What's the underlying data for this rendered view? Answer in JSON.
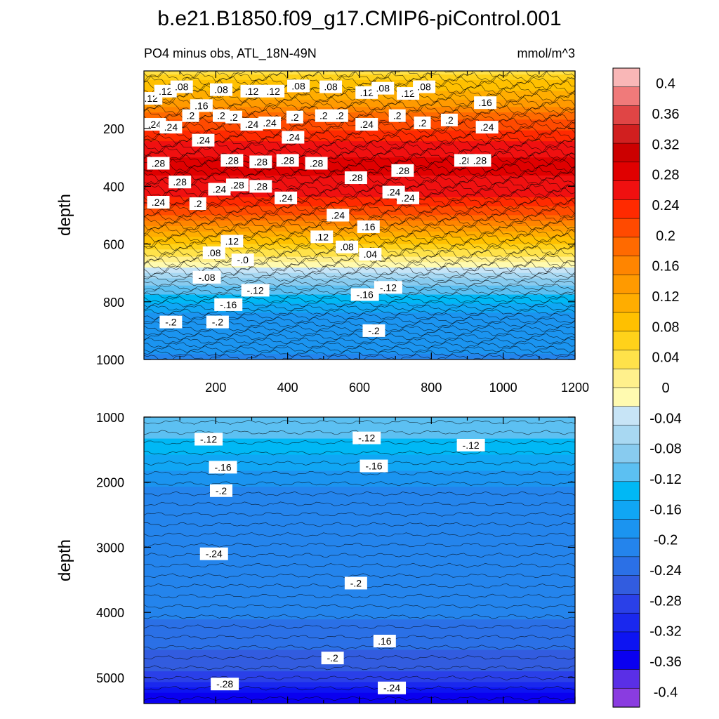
{
  "chart_data": {
    "type": "heatmap",
    "title": "b.e21.B1850.f09_g17.CMIP6-piControl.001",
    "subtitle_left": "PO4 minus obs, ATL_18N-49N",
    "subtitle_right": "mmol/m^3",
    "colorbar": {
      "levels": [
        "0.4",
        "0.36",
        "0.32",
        "0.28",
        "0.24",
        "0.2",
        "0.16",
        "0.12",
        "0.08",
        "0.04",
        "0",
        "-0.04",
        "-0.08",
        "-0.12",
        "-0.16",
        "-0.2",
        "-0.24",
        "-0.28",
        "-0.32",
        "-0.36",
        "-0.4"
      ],
      "colors": [
        "#f9b7b7",
        "#f07a7a",
        "#e04545",
        "#d11f1f",
        "#cc0000",
        "#e00000",
        "#f01010",
        "#ff2a00",
        "#ff4a00",
        "#ff6a00",
        "#ff8500",
        "#ff9a00",
        "#ffad00",
        "#ffc000",
        "#ffd21a",
        "#ffe24a",
        "#fff08c",
        "#fffab0",
        "#c7e4f6",
        "#a8d8f2",
        "#88cbef",
        "#5cc0f2",
        "#00b8f5",
        "#10a6f4",
        "#1b94f0",
        "#2484ec",
        "#2b70e6",
        "#325cdf",
        "#2a40e8",
        "#1a28ee",
        "#0d14f2",
        "#0a00f0",
        "#5a2fe6",
        "#8a3ce0"
      ]
    },
    "top_panel": {
      "x": [
        0,
        1200
      ],
      "ylim": [
        0,
        1000
      ],
      "ylabel": "depth",
      "xticks": [
        "200",
        "400",
        "600",
        "800",
        "1000",
        "1200"
      ],
      "yticks": [
        "200",
        "400",
        "600",
        "800",
        "1000"
      ],
      "depth_profile": [
        {
          "depth": 0,
          "value": 0.04
        },
        {
          "depth": 40,
          "value": 0.08
        },
        {
          "depth": 100,
          "value": 0.12
        },
        {
          "depth": 170,
          "value": 0.2
        },
        {
          "depth": 230,
          "value": 0.24
        },
        {
          "depth": 320,
          "value": 0.28
        },
        {
          "depth": 420,
          "value": 0.26
        },
        {
          "depth": 500,
          "value": 0.2
        },
        {
          "depth": 560,
          "value": 0.12
        },
        {
          "depth": 610,
          "value": 0.06
        },
        {
          "depth": 650,
          "value": 0.02
        },
        {
          "depth": 680,
          "value": -0.02
        },
        {
          "depth": 720,
          "value": -0.08
        },
        {
          "depth": 780,
          "value": -0.13
        },
        {
          "depth": 850,
          "value": -0.18
        },
        {
          "depth": 1000,
          "value": -0.2
        }
      ],
      "contour_labels": [
        {
          "text": ".12",
          "x": 20,
          "d": 95
        },
        {
          "text": ".12",
          "x": 60,
          "d": 70
        },
        {
          "text": ".08",
          "x": 105,
          "d": 55
        },
        {
          "text": ".08",
          "x": 215,
          "d": 65
        },
        {
          "text": ".12",
          "x": 300,
          "d": 70
        },
        {
          "text": ".12",
          "x": 360,
          "d": 70
        },
        {
          "text": ".08",
          "x": 430,
          "d": 52
        },
        {
          "text": ".08",
          "x": 520,
          "d": 55
        },
        {
          "text": ".12",
          "x": 620,
          "d": 75
        },
        {
          "text": ".08",
          "x": 665,
          "d": 60
        },
        {
          "text": ".12",
          "x": 735,
          "d": 78
        },
        {
          "text": ".08",
          "x": 780,
          "d": 55
        },
        {
          "text": ".16",
          "x": 950,
          "d": 110
        },
        {
          "text": ".24",
          "x": 30,
          "d": 185
        },
        {
          "text": ".24",
          "x": 75,
          "d": 195
        },
        {
          "text": ".2",
          "x": 130,
          "d": 155
        },
        {
          "text": ".16",
          "x": 160,
          "d": 120
        },
        {
          "text": ".2",
          "x": 215,
          "d": 155
        },
        {
          "text": ".2",
          "x": 250,
          "d": 160
        },
        {
          "text": ".24",
          "x": 300,
          "d": 185
        },
        {
          "text": ".24",
          "x": 350,
          "d": 180
        },
        {
          "text": ".2",
          "x": 420,
          "d": 160
        },
        {
          "text": ".2",
          "x": 500,
          "d": 155
        },
        {
          "text": ".2",
          "x": 545,
          "d": 155
        },
        {
          "text": ".24",
          "x": 620,
          "d": 185
        },
        {
          "text": ".2",
          "x": 705,
          "d": 155
        },
        {
          "text": ".2",
          "x": 775,
          "d": 180
        },
        {
          "text": ".2",
          "x": 850,
          "d": 170
        },
        {
          "text": ".24",
          "x": 955,
          "d": 195
        },
        {
          "text": ".24",
          "x": 165,
          "d": 240
        },
        {
          "text": ".24",
          "x": 415,
          "d": 230
        },
        {
          "text": ".28",
          "x": 40,
          "d": 320
        },
        {
          "text": ".28",
          "x": 245,
          "d": 310
        },
        {
          "text": ".28",
          "x": 325,
          "d": 315
        },
        {
          "text": ".28",
          "x": 400,
          "d": 310
        },
        {
          "text": ".28",
          "x": 480,
          "d": 320
        },
        {
          "text": ".28",
          "x": 590,
          "d": 370
        },
        {
          "text": ".28",
          "x": 720,
          "d": 345
        },
        {
          "text": ".28",
          "x": 895,
          "d": 310
        },
        {
          "text": ".28",
          "x": 935,
          "d": 310
        },
        {
          "text": ".28",
          "x": 100,
          "d": 385
        },
        {
          "text": ".24",
          "x": 40,
          "d": 455
        },
        {
          "text": ".2",
          "x": 150,
          "d": 460
        },
        {
          "text": ".24",
          "x": 210,
          "d": 410
        },
        {
          "text": ".28",
          "x": 260,
          "d": 395
        },
        {
          "text": ".28",
          "x": 325,
          "d": 400
        },
        {
          "text": ".24",
          "x": 395,
          "d": 440
        },
        {
          "text": ".24",
          "x": 735,
          "d": 440
        },
        {
          "text": ".24",
          "x": 540,
          "d": 500
        },
        {
          "text": ".24",
          "x": 695,
          "d": 420
        },
        {
          "text": ".16",
          "x": 625,
          "d": 540
        },
        {
          "text": ".12",
          "x": 245,
          "d": 590
        },
        {
          "text": ".08",
          "x": 195,
          "d": 630
        },
        {
          "text": ".12",
          "x": 495,
          "d": 575
        },
        {
          "text": ".08",
          "x": 565,
          "d": 610
        },
        {
          "text": ".04",
          "x": 630,
          "d": 635
        },
        {
          "text": "-.0",
          "x": 275,
          "d": 655
        },
        {
          "text": "-.08",
          "x": 175,
          "d": 715
        },
        {
          "text": "-.12",
          "x": 310,
          "d": 760
        },
        {
          "text": "-.16",
          "x": 235,
          "d": 810
        },
        {
          "text": "-.16",
          "x": 615,
          "d": 775
        },
        {
          "text": "-.12",
          "x": 680,
          "d": 750
        },
        {
          "text": "-.2",
          "x": 75,
          "d": 870
        },
        {
          "text": "-.2",
          "x": 205,
          "d": 870
        },
        {
          "text": "-.2",
          "x": 640,
          "d": 900
        }
      ]
    },
    "bottom_panel": {
      "x": [
        0,
        1200
      ],
      "ylim": [
        1000,
        5400
      ],
      "ylabel": "depth",
      "yticks": [
        "1000",
        "2000",
        "3000",
        "4000",
        "5000"
      ],
      "depth_profile": [
        {
          "depth": 1000,
          "value": -0.12
        },
        {
          "depth": 1300,
          "value": -0.12
        },
        {
          "depth": 1700,
          "value": -0.16
        },
        {
          "depth": 2100,
          "value": -0.2
        },
        {
          "depth": 3600,
          "value": -0.2
        },
        {
          "depth": 4500,
          "value": -0.24
        },
        {
          "depth": 5000,
          "value": -0.28
        },
        {
          "depth": 5300,
          "value": -0.36
        }
      ],
      "contour_labels": [
        {
          "text": "-.12",
          "x": 180,
          "d": 1340
        },
        {
          "text": "-.12",
          "x": 620,
          "d": 1320
        },
        {
          "text": "-.12",
          "x": 910,
          "d": 1430
        },
        {
          "text": "-.16",
          "x": 220,
          "d": 1770
        },
        {
          "text": "-.16",
          "x": 640,
          "d": 1750
        },
        {
          "text": "-.2",
          "x": 215,
          "d": 2130
        },
        {
          "text": "-.24",
          "x": 195,
          "d": 3100
        },
        {
          "text": "-.2",
          "x": 590,
          "d": 3550
        },
        {
          "text": ".16",
          "x": 670,
          "d": 4440
        },
        {
          "text": "-.2",
          "x": 525,
          "d": 4700
        },
        {
          "text": "-.28",
          "x": 225,
          "d": 5100
        },
        {
          "text": "-.24",
          "x": 690,
          "d": 5160
        }
      ]
    }
  }
}
